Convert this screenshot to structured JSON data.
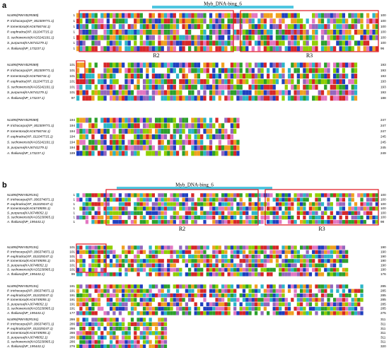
{
  "panels": [
    {
      "label": "a",
      "domain": "Myb_DNA-bing_6",
      "motifs": [
        "R2",
        "R3"
      ],
      "names": [
        "NL895(PtMYB2R089)",
        "P. trichocarpa(XP_002309771.1)",
        "P. tomentosa(KAG6766744.1)",
        "P. euphratica(XP_011047715.1)",
        "S. suchowensis(KAG5242181.1)",
        "S. purpurea(KAJ6741279.1)",
        "A. thaliana(NP_173237.1)"
      ],
      "blocks": [
        {
          "start": [
            "1",
            "1",
            "1",
            "1",
            "1",
            "1",
            "1"
          ],
          "end": [
            "100",
            "100",
            "100",
            "100",
            "100",
            "100",
            "96"
          ]
        },
        {
          "start": [
            "101",
            "101",
            "101",
            "101",
            "101",
            "101",
            "97"
          ],
          "end": [
            "193",
            "193",
            "193",
            "193",
            "193",
            "193",
            "188"
          ]
        },
        {
          "start": [
            "194",
            "194",
            "194",
            "194",
            "194",
            "194",
            "189"
          ],
          "end": [
            "247",
            "247",
            "247",
            "245",
            "245",
            "245",
            "249"
          ]
        }
      ]
    },
    {
      "label": "b",
      "domain": "Myb_DNA-bing_6",
      "motifs": [
        "R2",
        "R3"
      ],
      "names": [
        "NL895(PtMYB2R191)",
        "P. trichocarpa(XP_006374871.1)",
        "P. euphratica(XP_011029247.1)",
        "P. tomentosa(KAG6749055.1)",
        "S. purpurea(KAJ6748052.1)",
        "S. suchowensis(KAG5230965.1)",
        "A. thaliana(NP_195443.1)"
      ],
      "blocks": [
        {
          "start": [
            "1",
            "1",
            "1",
            "1",
            "1",
            "1",
            "1"
          ],
          "end": [
            "100",
            "100",
            "100",
            "100",
            "100",
            "100",
            "98"
          ]
        },
        {
          "start": [
            "101",
            "101",
            "101",
            "101",
            "101",
            "101",
            "99"
          ],
          "end": [
            "190",
            "190",
            "190",
            "190",
            "190",
            "190",
            "176"
          ]
        },
        {
          "start": [
            "191",
            "191",
            "191",
            "191",
            "191",
            "191",
            "177"
          ],
          "end": [
            "285",
            "285",
            "285",
            "285",
            "285",
            "285",
            "275"
          ]
        },
        {
          "start": [
            "286",
            "286",
            "286",
            "286",
            "286",
            "286",
            "276"
          ],
          "end": [
            "311",
            "311",
            "311",
            "311",
            "311",
            "311",
            "320"
          ]
        }
      ]
    }
  ]
}
